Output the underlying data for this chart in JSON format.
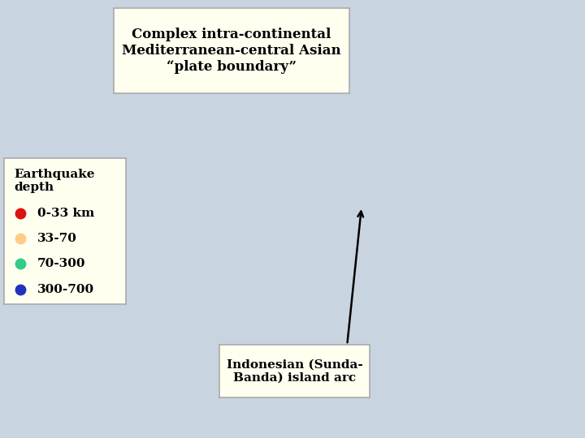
{
  "title": "Complex intra-continental\nMediterranean-central Asian\n“plate boundary”",
  "title_box_color": "#fffff0",
  "title_box_edge": "#aaaaaa",
  "title_fontsize": 12,
  "title_fontweight": "bold",
  "legend_title": "Earthquake\ndepth",
  "legend_items": [
    {
      "label": "0-33 km",
      "color": "#dd1111"
    },
    {
      "label": "33-70",
      "color": "#ffcc88"
    },
    {
      "label": "70-300",
      "color": "#33cc88"
    },
    {
      "label": "300-700",
      "color": "#2233bb"
    }
  ],
  "legend_box_color": "#fffff0",
  "legend_box_edge": "#aaaaaa",
  "legend_fontsize": 11,
  "legend_fontweight": "bold",
  "annotation_label": "Indonesian (Sunda-\nBanda) island arc",
  "annotation_box_color": "#fffff0",
  "annotation_box_edge": "#aaaaaa",
  "annotation_fontsize": 11,
  "annotation_fontweight": "bold",
  "map_extent": [
    -20,
    160,
    -25,
    75
  ],
  "grid_lons": [
    -20,
    20,
    60,
    100,
    140
  ],
  "grid_lats": [
    -20,
    5,
    30,
    55
  ],
  "background_color": "#c8d4e0",
  "land_color": "#e0ddd0",
  "ocean_color": "#c8d4e0",
  "coast_color": "#333333",
  "coast_linewidth": 0.5,
  "grid_color": "#888888",
  "grid_linewidth": 0.7,
  "fig_width": 7.2,
  "fig_height": 5.4
}
